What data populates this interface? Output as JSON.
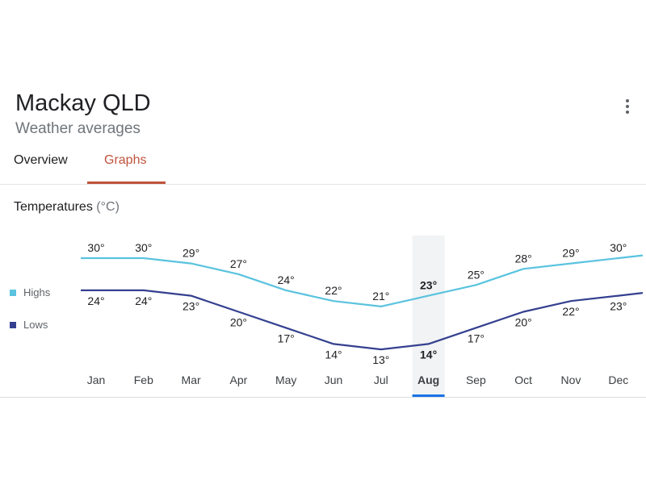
{
  "header": {
    "title": "Mackay QLD",
    "subtitle": "Weather averages"
  },
  "tabs": [
    {
      "label": "Overview"
    },
    {
      "label": "Graphs"
    }
  ],
  "section": {
    "title": "Temperatures",
    "unit": "(°C)"
  },
  "legend": {
    "highs": {
      "label": "Highs",
      "color": "#5ac3df"
    },
    "lows": {
      "label": "Lows",
      "color": "#34408f"
    }
  },
  "colors": {
    "accent": "#c0533d",
    "highlight_band": "#f1f3f4"
  },
  "icons": {
    "menu": "more-vert-icon"
  },
  "chart_data": {
    "type": "line",
    "title": "Temperatures (°C)",
    "categories": [
      "Jan",
      "Feb",
      "Mar",
      "Apr",
      "May",
      "Jun",
      "Jul",
      "Aug",
      "Sep",
      "Oct",
      "Nov",
      "Dec"
    ],
    "selected": "Aug",
    "series": [
      {
        "name": "Highs",
        "values": [
          30,
          30,
          29,
          27,
          24,
          22,
          21,
          23,
          25,
          28,
          29,
          30
        ]
      },
      {
        "name": "Lows",
        "values": [
          24,
          24,
          23,
          20,
          17,
          14,
          13,
          14,
          17,
          20,
          22,
          23
        ]
      }
    ]
  }
}
